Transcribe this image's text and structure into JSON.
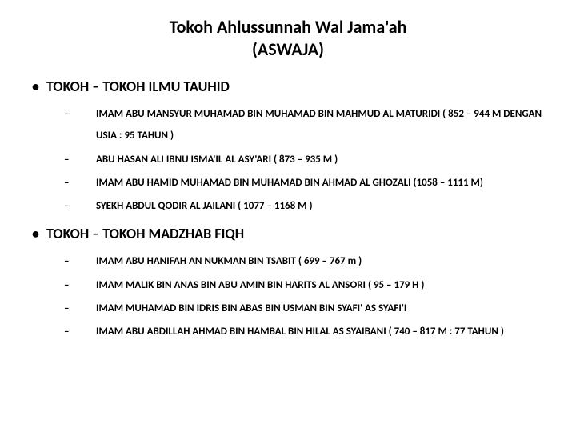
{
  "title": {
    "line1": "Tokoh Ahlussunnah Wal Jama'ah",
    "line2": "(ASWAJA)"
  },
  "bullets": {
    "level1": "•",
    "level2": "–"
  },
  "sections": [
    {
      "heading": "TOKOH – TOKOH ILMU TAUHID",
      "items": [
        "IMAM ABU MANSYUR MUHAMAD BIN MUHAMAD BIN MAHMUD AL MATURIDI ( 852 – 944 M DENGAN USIA : 95 TAHUN )",
        "ABU HASAN ALI IBNU ISMA'IL AL ASY'ARI ( 873 – 935 M )",
        "IMAM ABU HAMID MUHAMAD BIN MUHAMAD BIN AHMAD AL GHOZALI (1058 – 1111 M)",
        "SYEKH ABDUL QODIR AL JAILANI ( 1077 – 1168 M )"
      ]
    },
    {
      "heading": "TOKOH – TOKOH MADZHAB FIQH",
      "items": [
        "IMAM ABU HANIFAH AN NUKMAN BIN TSABIT ( 699 – 767 m )",
        "IMAM MALIK BIN ANAS BIN ABU AMIN BIN HARITS AL ANSORI ( 95 – 179 H )",
        "IMAM MUHAMAD BIN IDRIS BIN ABAS BIN USMAN BIN SYAFI' AS SYAFI'I",
        "IMAM ABU ABDILLAH AHMAD BIN HAMBAL BIN HILAL AS SYAIBANI ( 740 – 817 M : 77 TAHUN )"
      ]
    }
  ],
  "style": {
    "background_color": "#ffffff",
    "text_color": "#000000",
    "title_fontsize": 22,
    "heading_fontsize": 18,
    "item_fontsize": 13,
    "font_family": "Calibri"
  }
}
